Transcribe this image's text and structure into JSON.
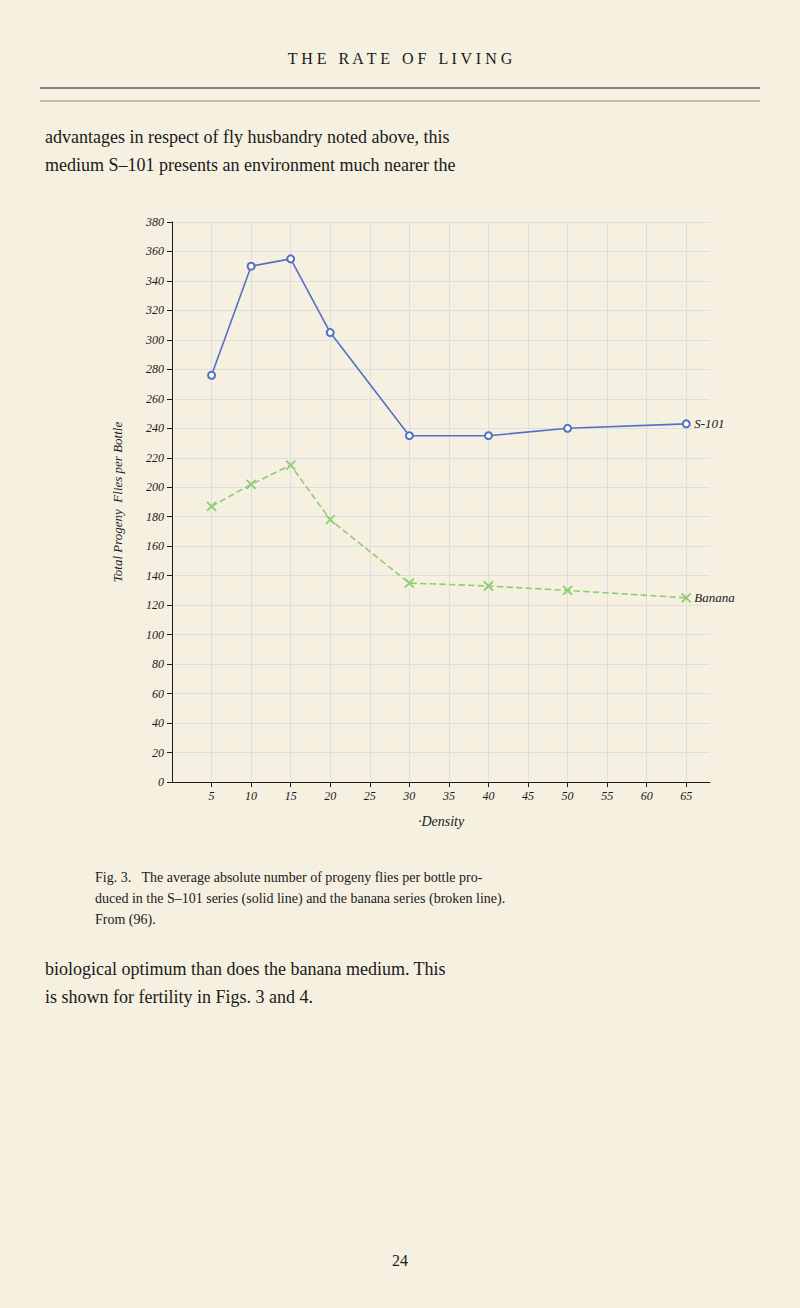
{
  "chart_data": {
    "type": "line",
    "title": "T H E   R A T E   O F   L I V I N G",
    "annotations": [
      "advantages in respect of fly husbandry noted above, this\nmedium S–101 presents an environment much nearer the",
      "Fig. 3.   The average absolute number of progeny flies per bottle pro-\nduced in the S–101 series (solid line) and the banana series (broken line).\nFrom (96).",
      "biological optimum than does the banana medium. This\nis shown for fertility in Figs. 3 and 4.",
      "24"
    ],
    "xlabel": "·Density",
    "ylabel": "Total Progeny  Flies per Bottle",
    "xlim": [
      0,
      68
    ],
    "xticks": [
      5,
      10,
      15,
      20,
      25,
      30,
      35,
      40,
      45,
      50,
      55,
      60,
      65
    ],
    "ylim": [
      0,
      380
    ],
    "yticks": [
      0,
      20,
      40,
      60,
      80,
      100,
      120,
      140,
      160,
      180,
      200,
      220,
      240,
      260,
      280,
      300,
      320,
      340,
      360,
      380
    ],
    "grid": true,
    "series": [
      {
        "name": "S-101",
        "x": [
          5,
          10,
          15,
          20,
          30,
          40,
          50,
          65
        ],
        "values": [
          276,
          350,
          355,
          305,
          235,
          235,
          240,
          243
        ],
        "marker": "o",
        "line_style": "solid"
      },
      {
        "name": "Banana",
        "x": [
          5,
          10,
          15,
          20,
          30,
          40,
          50,
          65
        ],
        "values": [
          187,
          202,
          215,
          178,
          135,
          133,
          130,
          125
        ],
        "marker": "x",
        "line_style": "dashed"
      }
    ]
  }
}
